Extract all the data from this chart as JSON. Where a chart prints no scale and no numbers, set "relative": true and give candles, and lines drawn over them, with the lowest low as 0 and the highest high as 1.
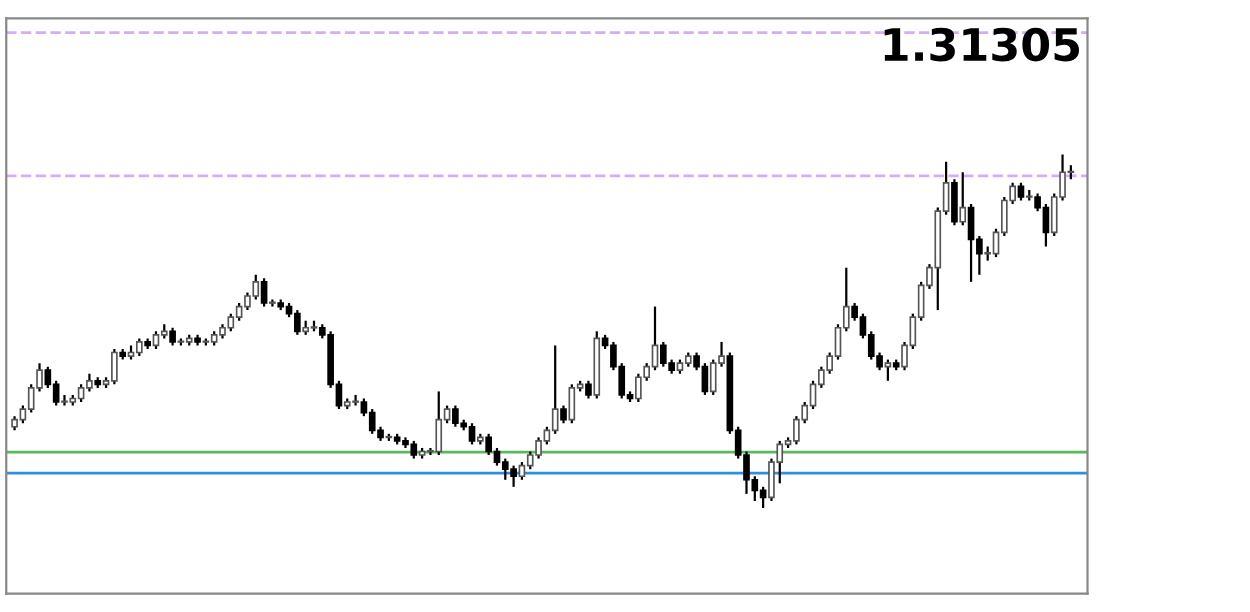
{
  "chart_data": {
    "type": "candlestick",
    "relative": true,
    "categories": [
      null,
      null,
      null,
      null,
      null,
      null,
      null,
      null,
      null,
      null,
      null,
      null,
      null,
      null,
      null,
      null,
      null,
      null,
      null,
      null,
      null,
      null,
      null,
      null,
      null,
      null,
      null,
      null,
      null,
      null,
      null,
      null,
      null,
      null,
      null,
      null,
      null,
      null,
      null,
      null,
      null,
      null,
      null,
      null,
      null,
      null,
      null,
      null,
      null,
      null,
      null,
      null,
      null,
      null,
      null,
      null,
      null,
      null,
      null,
      null,
      null,
      null,
      null,
      null,
      null,
      null,
      null,
      null,
      null,
      null,
      null,
      null,
      null,
      null,
      null,
      null,
      null,
      null,
      null,
      null,
      null,
      null,
      null,
      null,
      null,
      null,
      null,
      null,
      null,
      null,
      null,
      null,
      null,
      null,
      null,
      null,
      null,
      null,
      null,
      null,
      null,
      null,
      null,
      null,
      null,
      null,
      null,
      null,
      null,
      null,
      null,
      null,
      null,
      null,
      null,
      null,
      null,
      null,
      null,
      null,
      null,
      null,
      null,
      null,
      null,
      null,
      null,
      null
    ],
    "ohlc": [
      [
        0.23,
        0.26,
        0.22,
        0.25
      ],
      [
        0.25,
        0.29,
        0.24,
        0.28
      ],
      [
        0.28,
        0.35,
        0.27,
        0.34
      ],
      [
        0.34,
        0.41,
        0.33,
        0.39
      ],
      [
        0.39,
        0.4,
        0.34,
        0.35
      ],
      [
        0.35,
        0.36,
        0.29,
        0.3
      ],
      [
        0.3,
        0.32,
        0.29,
        0.3
      ],
      [
        0.3,
        0.32,
        0.29,
        0.31
      ],
      [
        0.31,
        0.35,
        0.3,
        0.34
      ],
      [
        0.34,
        0.38,
        0.33,
        0.36
      ],
      [
        0.36,
        0.37,
        0.34,
        0.35
      ],
      [
        0.35,
        0.37,
        0.34,
        0.36
      ],
      [
        0.36,
        0.45,
        0.35,
        0.44
      ],
      [
        0.44,
        0.45,
        0.42,
        0.43
      ],
      [
        0.43,
        0.46,
        0.42,
        0.44
      ],
      [
        0.44,
        0.48,
        0.43,
        0.47
      ],
      [
        0.47,
        0.48,
        0.45,
        0.46
      ],
      [
        0.46,
        0.5,
        0.45,
        0.49
      ],
      [
        0.49,
        0.52,
        0.48,
        0.5
      ],
      [
        0.5,
        0.51,
        0.46,
        0.47
      ],
      [
        0.47,
        0.48,
        0.46,
        0.47
      ],
      [
        0.47,
        0.49,
        0.46,
        0.48
      ],
      [
        0.48,
        0.49,
        0.46,
        0.47
      ],
      [
        0.47,
        0.48,
        0.46,
        0.47
      ],
      [
        0.47,
        0.5,
        0.46,
        0.49
      ],
      [
        0.49,
        0.52,
        0.48,
        0.51
      ],
      [
        0.51,
        0.55,
        0.5,
        0.54
      ],
      [
        0.54,
        0.58,
        0.53,
        0.57
      ],
      [
        0.57,
        0.61,
        0.56,
        0.6
      ],
      [
        0.6,
        0.66,
        0.59,
        0.64
      ],
      [
        0.64,
        0.65,
        0.57,
        0.58
      ],
      [
        0.58,
        0.59,
        0.57,
        0.58
      ],
      [
        0.58,
        0.59,
        0.56,
        0.57
      ],
      [
        0.57,
        0.58,
        0.54,
        0.55
      ],
      [
        0.55,
        0.56,
        0.49,
        0.5
      ],
      [
        0.5,
        0.53,
        0.49,
        0.51
      ],
      [
        0.51,
        0.53,
        0.5,
        0.51
      ],
      [
        0.51,
        0.52,
        0.48,
        0.49
      ],
      [
        0.49,
        0.5,
        0.34,
        0.35
      ],
      [
        0.35,
        0.36,
        0.28,
        0.29
      ],
      [
        0.29,
        0.31,
        0.28,
        0.3
      ],
      [
        0.3,
        0.32,
        0.29,
        0.3
      ],
      [
        0.3,
        0.31,
        0.26,
        0.27
      ],
      [
        0.27,
        0.28,
        0.21,
        0.22
      ],
      [
        0.22,
        0.23,
        0.19,
        0.2
      ],
      [
        0.2,
        0.21,
        0.19,
        0.2
      ],
      [
        0.2,
        0.21,
        0.18,
        0.19
      ],
      [
        0.19,
        0.2,
        0.17,
        0.18
      ],
      [
        0.18,
        0.19,
        0.14,
        0.15
      ],
      [
        0.15,
        0.17,
        0.14,
        0.16
      ],
      [
        0.16,
        0.17,
        0.15,
        0.16
      ],
      [
        0.16,
        0.33,
        0.15,
        0.25
      ],
      [
        0.25,
        0.29,
        0.24,
        0.28
      ],
      [
        0.28,
        0.29,
        0.23,
        0.24
      ],
      [
        0.24,
        0.25,
        0.22,
        0.23
      ],
      [
        0.23,
        0.24,
        0.18,
        0.19
      ],
      [
        0.19,
        0.21,
        0.18,
        0.2
      ],
      [
        0.2,
        0.21,
        0.15,
        0.16
      ],
      [
        0.16,
        0.17,
        0.12,
        0.13
      ],
      [
        0.13,
        0.14,
        0.08,
        0.11
      ],
      [
        0.11,
        0.12,
        0.06,
        0.09
      ],
      [
        0.09,
        0.13,
        0.08,
        0.12
      ],
      [
        0.12,
        0.16,
        0.11,
        0.15
      ],
      [
        0.15,
        0.2,
        0.14,
        0.19
      ],
      [
        0.19,
        0.23,
        0.18,
        0.22
      ],
      [
        0.22,
        0.46,
        0.21,
        0.28
      ],
      [
        0.28,
        0.29,
        0.24,
        0.25
      ],
      [
        0.25,
        0.35,
        0.24,
        0.34
      ],
      [
        0.34,
        0.36,
        0.33,
        0.35
      ],
      [
        0.35,
        0.36,
        0.31,
        0.32
      ],
      [
        0.32,
        0.5,
        0.31,
        0.48
      ],
      [
        0.48,
        0.49,
        0.45,
        0.46
      ],
      [
        0.46,
        0.47,
        0.39,
        0.4
      ],
      [
        0.4,
        0.41,
        0.31,
        0.32
      ],
      [
        0.32,
        0.33,
        0.3,
        0.31
      ],
      [
        0.31,
        0.38,
        0.3,
        0.37
      ],
      [
        0.37,
        0.41,
        0.36,
        0.4
      ],
      [
        0.4,
        0.57,
        0.39,
        0.46
      ],
      [
        0.46,
        0.47,
        0.4,
        0.41
      ],
      [
        0.41,
        0.42,
        0.38,
        0.39
      ],
      [
        0.39,
        0.42,
        0.38,
        0.41
      ],
      [
        0.41,
        0.44,
        0.4,
        0.43
      ],
      [
        0.43,
        0.44,
        0.39,
        0.4
      ],
      [
        0.4,
        0.41,
        0.32,
        0.33
      ],
      [
        0.33,
        0.42,
        0.32,
        0.41
      ],
      [
        0.41,
        0.47,
        0.4,
        0.43
      ],
      [
        0.43,
        0.44,
        0.21,
        0.22
      ],
      [
        0.22,
        0.23,
        0.14,
        0.15
      ],
      [
        0.15,
        0.16,
        0.04,
        0.08
      ],
      [
        0.08,
        0.09,
        0.02,
        0.05
      ],
      [
        0.05,
        0.06,
        0.0,
        0.03
      ],
      [
        0.03,
        0.14,
        0.02,
        0.13
      ],
      [
        0.13,
        0.19,
        0.07,
        0.18
      ],
      [
        0.18,
        0.2,
        0.17,
        0.19
      ],
      [
        0.19,
        0.26,
        0.18,
        0.25
      ],
      [
        0.25,
        0.3,
        0.24,
        0.29
      ],
      [
        0.29,
        0.36,
        0.28,
        0.35
      ],
      [
        0.35,
        0.4,
        0.34,
        0.39
      ],
      [
        0.39,
        0.44,
        0.38,
        0.43
      ],
      [
        0.43,
        0.52,
        0.42,
        0.51
      ],
      [
        0.51,
        0.68,
        0.5,
        0.57
      ],
      [
        0.57,
        0.58,
        0.53,
        0.54
      ],
      [
        0.54,
        0.55,
        0.48,
        0.49
      ],
      [
        0.49,
        0.5,
        0.42,
        0.43
      ],
      [
        0.43,
        0.44,
        0.39,
        0.4
      ],
      [
        0.4,
        0.42,
        0.36,
        0.41
      ],
      [
        0.41,
        0.42,
        0.39,
        0.4
      ],
      [
        0.4,
        0.47,
        0.39,
        0.46
      ],
      [
        0.46,
        0.55,
        0.45,
        0.54
      ],
      [
        0.54,
        0.64,
        0.53,
        0.63
      ],
      [
        0.63,
        0.69,
        0.62,
        0.68
      ],
      [
        0.68,
        0.85,
        0.56,
        0.84
      ],
      [
        0.84,
        0.98,
        0.83,
        0.92
      ],
      [
        0.92,
        0.93,
        0.8,
        0.81
      ],
      [
        0.81,
        0.95,
        0.8,
        0.85
      ],
      [
        0.85,
        0.86,
        0.64,
        0.76
      ],
      [
        0.76,
        0.77,
        0.66,
        0.72
      ],
      [
        0.72,
        0.74,
        0.7,
        0.72
      ],
      [
        0.72,
        0.79,
        0.71,
        0.78
      ],
      [
        0.78,
        0.88,
        0.77,
        0.87
      ],
      [
        0.87,
        0.92,
        0.86,
        0.91
      ],
      [
        0.91,
        0.92,
        0.87,
        0.88
      ],
      [
        0.88,
        0.9,
        0.87,
        0.88
      ],
      [
        0.88,
        0.89,
        0.84,
        0.85
      ],
      [
        0.85,
        0.86,
        0.74,
        0.78
      ],
      [
        0.78,
        0.89,
        0.77,
        0.88
      ],
      [
        0.88,
        1.0,
        0.87,
        0.95
      ],
      [
        0.95,
        0.97,
        0.93,
        0.95
      ]
    ],
    "ref_lines": [
      {
        "axis": "y",
        "value": 1.345,
        "color": "#d4aef5",
        "line_style": "dashed"
      },
      {
        "axis": "y",
        "value": 0.94,
        "color": "#d4aef5",
        "line_style": "dashed"
      },
      {
        "axis": "y",
        "value": 0.158,
        "color": "#5cb85c",
        "line_style": "solid"
      },
      {
        "axis": "y",
        "value": 0.099,
        "color": "#2f8fe0",
        "line_style": "solid"
      }
    ],
    "annotations": [
      "1.31305"
    ]
  }
}
